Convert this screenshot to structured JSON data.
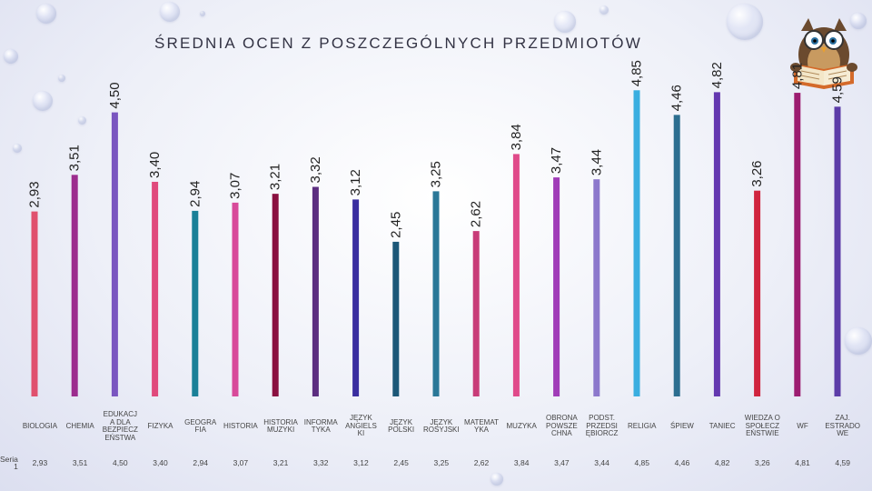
{
  "chart_data": {
    "type": "bar",
    "title": "ŚREDNIA OCEN Z POSZCZEGÓLNYCH PRZEDMIOTÓW",
    "series_label": "Seria 1",
    "categories": [
      "BIOLOGIA",
      "CHEMIA",
      "EDUKACJA DLA BEZPIECZEŃSTWA",
      "FIZYKA",
      "GEOGRAFIA",
      "HISTORIA",
      "HISTORIA MUZYKI",
      "INFORMATYKA",
      "JĘZYK ANGIELSKI",
      "JĘZYK POLSKI",
      "JĘZYK ROSYJSKI",
      "MATEMATYKA",
      "MUZYKA",
      "OBRONA POWSZECHNA",
      "PODST. PRZEDSIĘBIORCZ",
      "RELIGIA",
      "ŚPIEW",
      "TANIEC",
      "WIEDZA O SPOŁECZEŃSTWIE",
      "WF",
      "ZAJ. ESTRADOWE"
    ],
    "header_labels": [
      "BIOLOGIA",
      "CHEMIA",
      "EDUKACJ A DLA BEZPIECZ EŃSTWA",
      "FIZYKA",
      "GEOGRA FIA",
      "HISTORIA",
      "HISTORIA MUZYKI",
      "INFORMA TYKA",
      "JĘZYK ANGIELS KI",
      "JĘZYK POLSKI",
      "JĘZYK ROSYJSKI",
      "MATEMAT YKA",
      "MUZYKA",
      "OBRONA POWSZE CHNA",
      "PODST. PRZEDSI ĘBIORCZ",
      "RELIGIA",
      "ŚPIEW",
      "TANIEC",
      "WIEDZA O SPOŁECZ EŃSTWIE",
      "WF",
      "ZAJ. ESTRADO WE"
    ],
    "values": [
      2.93,
      3.51,
      4.5,
      3.4,
      2.94,
      3.07,
      3.21,
      3.32,
      3.12,
      2.45,
      3.25,
      2.62,
      3.84,
      3.47,
      3.44,
      4.85,
      4.46,
      4.82,
      3.26,
      4.81,
      4.59
    ],
    "labels": [
      "2,93",
      "3,51",
      "4,50",
      "3,40",
      "2,94",
      "3,07",
      "3,21",
      "3,32",
      "3,12",
      "2,45",
      "3,25",
      "2,62",
      "3,84",
      "3,47",
      "3,44",
      "4,85",
      "4,46",
      "4,82",
      "3,26",
      "4,81",
      "4,59"
    ],
    "colors": [
      "#e0506e",
      "#9c2c8e",
      "#7a56c0",
      "#e04a7c",
      "#1a8098",
      "#d84a9a",
      "#8a1040",
      "#5c2e80",
      "#3a2ea0",
      "#1c5878",
      "#2a7898",
      "#c83c78",
      "#e04a8a",
      "#a03cb8",
      "#8c78cc",
      "#3aaee0",
      "#2c6e90",
      "#6438b0",
      "#d0243e",
      "#9c1c70",
      "#5c3ca8"
    ],
    "ylim": [
      0,
      5.2
    ]
  }
}
